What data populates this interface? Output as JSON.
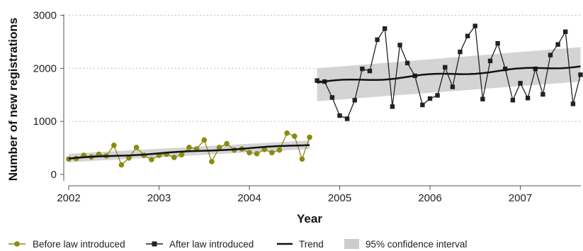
{
  "chart_data": {
    "type": "line",
    "xlabel": "Year",
    "ylabel": "Number of new registrations",
    "xlim": [
      2002,
      2007.7
    ],
    "ylim": [
      0,
      3000
    ],
    "x_ticks": [
      "2002",
      "2003",
      "2004",
      "2005",
      "2006",
      "2007"
    ],
    "y_ticks": [
      "0",
      "1000",
      "2000",
      "3000"
    ],
    "grid": "horizontal dotted",
    "legend_position": "bottom",
    "legend": {
      "before": "Before law introduced",
      "after": "After law introduced",
      "trend": "Trend",
      "ci": "95% confidence interval"
    },
    "colors": {
      "before": "#8a8a10",
      "after": "#222222",
      "trend": "#111111",
      "ci": "#cccccc",
      "grid": "#bbbbbb"
    },
    "series": [
      {
        "name": "Before law introduced",
        "start": "2002-01",
        "marker": "circle",
        "values": [
          290,
          300,
          360,
          330,
          380,
          350,
          550,
          180,
          310,
          510,
          360,
          280,
          360,
          380,
          320,
          370,
          510,
          480,
          650,
          240,
          510,
          580,
          460,
          480,
          410,
          390,
          470,
          410,
          460,
          780,
          720,
          290,
          700
        ]
      },
      {
        "name": "After law introduced",
        "start": "2004-10",
        "marker": "square",
        "values": [
          1770,
          1750,
          1450,
          1110,
          1050,
          1400,
          1990,
          1950,
          2540,
          2750,
          1280,
          2440,
          2100,
          1860,
          1310,
          1430,
          1490,
          2020,
          1650,
          2310,
          2610,
          2800,
          1420,
          2140,
          2470,
          1990,
          1400,
          1720,
          1440,
          1990,
          1510,
          2250,
          2450,
          2690,
          1330,
          1880
        ]
      }
    ],
    "trend": {
      "before": {
        "x": [
          2002.0,
          2004.667
        ],
        "y": [
          300,
          560
        ],
        "ci_lower_x": [
          2002.0,
          2004.667
        ],
        "ci_lower": [
          230,
          480
        ],
        "ci_upper": [
          390,
          640
        ]
      },
      "after": {
        "x": [
          2004.75,
          2007.667
        ],
        "y": [
          1730,
          2050
        ],
        "ci_lower": [
          1380,
          1750
        ],
        "ci_upper": [
          2000,
          2400
        ]
      }
    }
  }
}
